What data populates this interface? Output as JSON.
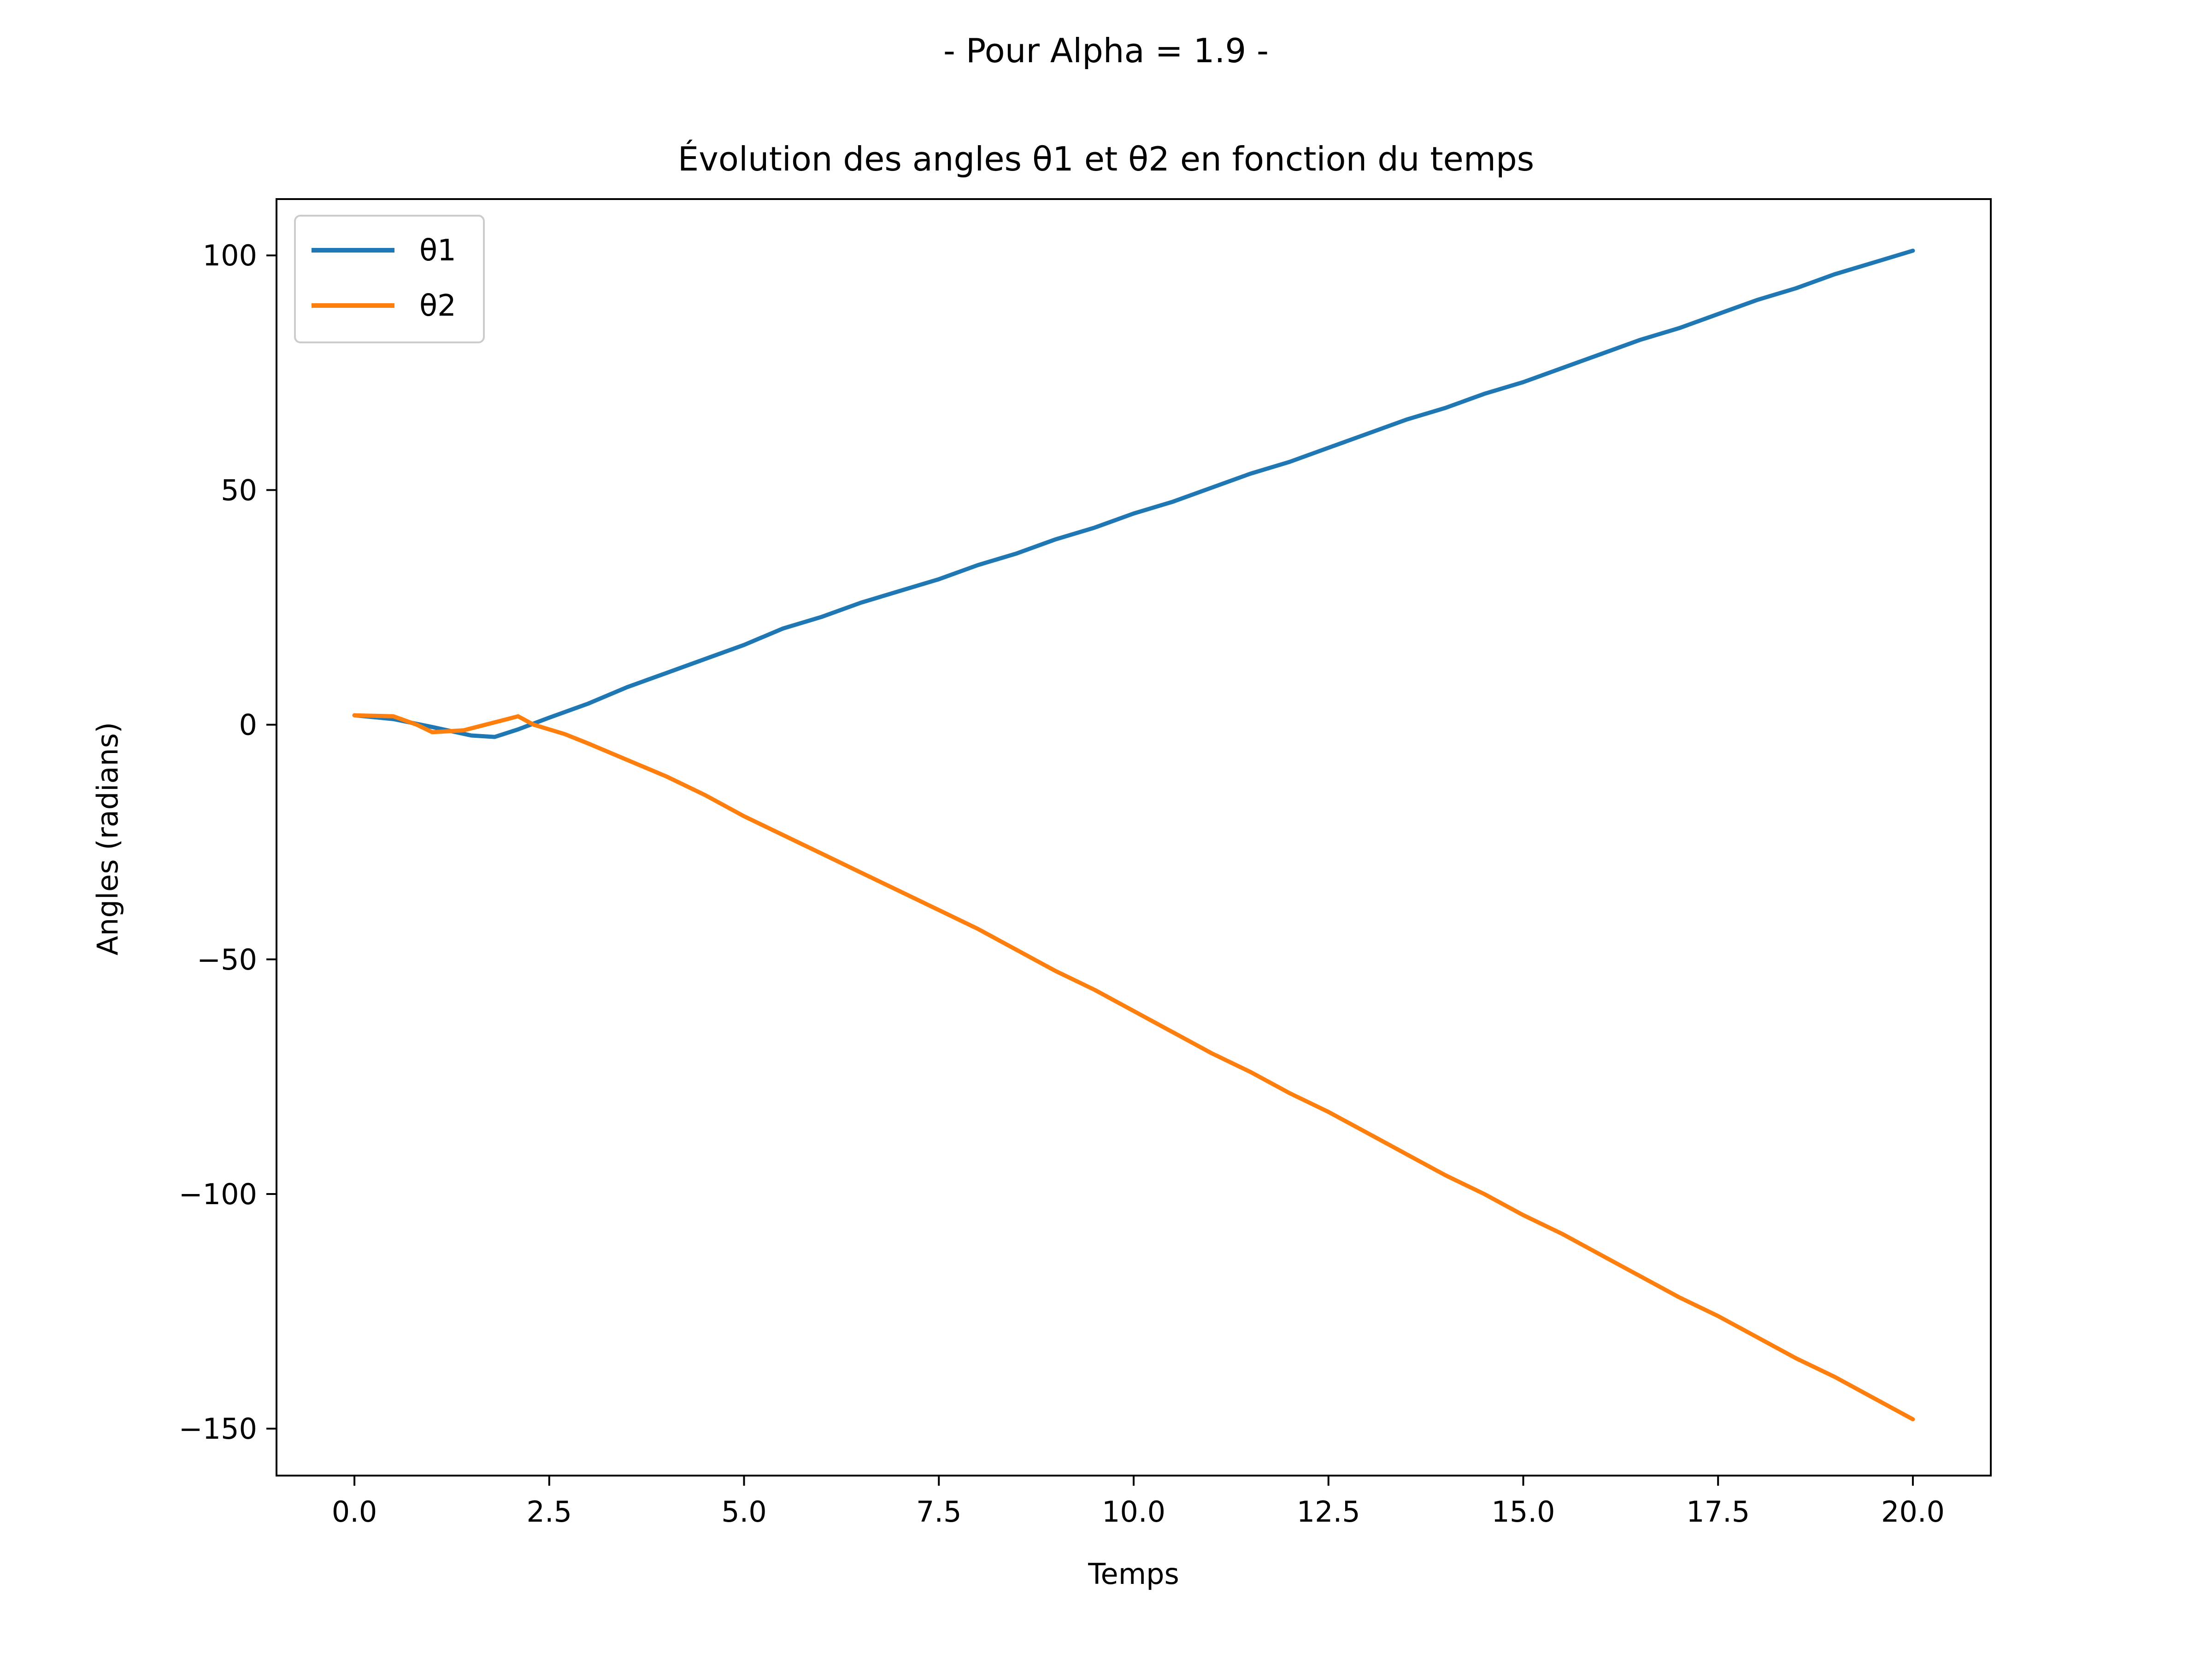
{
  "chart_data": {
    "type": "line",
    "suptitle": "- Pour Alpha = 1.9 -",
    "title": "Évolution des angles θ1 et θ2 en fonction du temps",
    "xlabel": "Temps",
    "ylabel": "Angles (radians)",
    "xlim": [
      -1,
      21
    ],
    "ylim": [
      -160,
      112
    ],
    "xticks": [
      0,
      2.5,
      5,
      7.5,
      10,
      12.5,
      15,
      17.5,
      20
    ],
    "xtick_labels": [
      "0.0",
      "2.5",
      "5.0",
      "7.5",
      "10.0",
      "12.5",
      "15.0",
      "17.5",
      "20.0"
    ],
    "yticks": [
      100,
      50,
      0,
      -50,
      -100,
      -150
    ],
    "ytick_labels": [
      "100",
      "50",
      "0",
      "−50",
      "−100",
      "−150"
    ],
    "legend_position": "upper-left",
    "series": [
      {
        "name": "θ1",
        "color": "#1f77b4",
        "points": [
          [
            0,
            2
          ],
          [
            0.5,
            1.2
          ],
          [
            1,
            -0.5
          ],
          [
            1.5,
            -2.3
          ],
          [
            1.8,
            -2.6
          ],
          [
            2.1,
            -1
          ],
          [
            2.5,
            1.5
          ],
          [
            3,
            4.5
          ],
          [
            3.5,
            8
          ],
          [
            4,
            11
          ],
          [
            4.5,
            14
          ],
          [
            5,
            17
          ],
          [
            5.5,
            20.5
          ],
          [
            6,
            23
          ],
          [
            6.5,
            26
          ],
          [
            7,
            28.5
          ],
          [
            7.5,
            31
          ],
          [
            8,
            34
          ],
          [
            8.5,
            36.5
          ],
          [
            9,
            39.5
          ],
          [
            9.5,
            42
          ],
          [
            10,
            45
          ],
          [
            10.5,
            47.5
          ],
          [
            11,
            50.5
          ],
          [
            11.5,
            53.5
          ],
          [
            12,
            56
          ],
          [
            12.5,
            59
          ],
          [
            13,
            62
          ],
          [
            13.5,
            65
          ],
          [
            14,
            67.5
          ],
          [
            14.5,
            70.5
          ],
          [
            15,
            73
          ],
          [
            15.5,
            76
          ],
          [
            16,
            79
          ],
          [
            16.5,
            82
          ],
          [
            17,
            84.5
          ],
          [
            17.5,
            87.5
          ],
          [
            18,
            90.5
          ],
          [
            18.5,
            93
          ],
          [
            19,
            96
          ],
          [
            19.5,
            98.5
          ],
          [
            20,
            101
          ]
        ]
      },
      {
        "name": "θ2",
        "color": "#ff7f0e",
        "points": [
          [
            0,
            2
          ],
          [
            0.5,
            1.8
          ],
          [
            0.8,
            0
          ],
          [
            1,
            -1.6
          ],
          [
            1.4,
            -1.2
          ],
          [
            1.8,
            0.5
          ],
          [
            2.1,
            1.8
          ],
          [
            2.3,
            0
          ],
          [
            2.7,
            -2
          ],
          [
            3,
            -4
          ],
          [
            3.5,
            -7.5
          ],
          [
            4,
            -11
          ],
          [
            4.5,
            -15
          ],
          [
            5,
            -19.5
          ],
          [
            5.5,
            -23.5
          ],
          [
            6,
            -27.5
          ],
          [
            6.5,
            -31.5
          ],
          [
            7,
            -35.5
          ],
          [
            7.5,
            -39.5
          ],
          [
            8,
            -43.5
          ],
          [
            8.5,
            -48
          ],
          [
            9,
            -52.5
          ],
          [
            9.5,
            -56.5
          ],
          [
            10,
            -61
          ],
          [
            10.5,
            -65.5
          ],
          [
            11,
            -70
          ],
          [
            11.5,
            -74
          ],
          [
            12,
            -78.5
          ],
          [
            12.5,
            -82.5
          ],
          [
            13,
            -87
          ],
          [
            13.5,
            -91.5
          ],
          [
            14,
            -96
          ],
          [
            14.5,
            -100
          ],
          [
            15,
            -104.5
          ],
          [
            15.5,
            -108.5
          ],
          [
            16,
            -113
          ],
          [
            16.5,
            -117.5
          ],
          [
            17,
            -122
          ],
          [
            17.5,
            -126
          ],
          [
            18,
            -130.5
          ],
          [
            18.5,
            -135
          ],
          [
            19,
            -139
          ],
          [
            19.5,
            -143.5
          ],
          [
            20,
            -148
          ]
        ]
      }
    ]
  }
}
